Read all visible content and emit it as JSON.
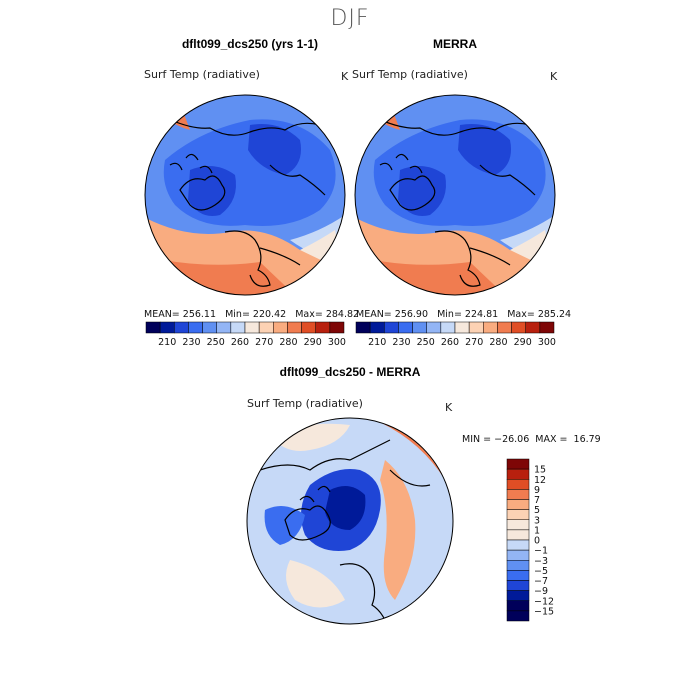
{
  "figure": {
    "title": "DJF",
    "colors": {
      "cold_1": "#00005a",
      "cold_2": "#001a99",
      "cold_3": "#1f45d6",
      "cold_4": "#3a6df0",
      "cold_5": "#6090f2",
      "cold_6": "#93b5f5",
      "cold_7": "#c6d9f7",
      "neutral": "#f6e8dc",
      "warm_1": "#fcd2b4",
      "warm_2": "#f9ac80",
      "warm_3": "#f07c50",
      "warm_4": "#e04e25",
      "warm_5": "#b8200e",
      "warm_6": "#7e0606",
      "coast": "#000000"
    }
  },
  "chart_data": [
    {
      "type": "heatmap",
      "panel": "model",
      "projection": "north-polar-stereographic",
      "title": "dflt099_dcs250 (yrs 1-1)",
      "variable": "Surf Temp (radiative)",
      "units": "K",
      "stats": {
        "mean_label": "MEAN=",
        "mean": 256.11,
        "min_label": "Min=",
        "min": 220.42,
        "max_label": "Max=",
        "max": 284.82
      },
      "colorbar": {
        "levels": [
          210,
          230,
          250,
          260,
          270,
          280,
          290,
          300
        ],
        "orientation": "horizontal"
      }
    },
    {
      "type": "heatmap",
      "panel": "observation",
      "projection": "north-polar-stereographic",
      "title": "MERRA",
      "variable": "Surf Temp (radiative)",
      "units": "K",
      "stats": {
        "mean_label": "MEAN=",
        "mean": 256.9,
        "min_label": "Min=",
        "min": 224.81,
        "max_label": "Max=",
        "max": 285.24
      },
      "colorbar": {
        "levels": [
          210,
          230,
          250,
          260,
          270,
          280,
          290,
          300
        ],
        "orientation": "horizontal"
      }
    },
    {
      "type": "heatmap",
      "panel": "difference",
      "projection": "north-polar-stereographic",
      "title": "dflt099_dcs250 - MERRA",
      "variable": "Surf Temp (radiative)",
      "units": "K",
      "stats": {
        "min_label": "MIN =",
        "min": -26.06,
        "max_label": "MAX =",
        "max": 16.79
      },
      "colorbar": {
        "levels": [
          15,
          12,
          9,
          7,
          5,
          3,
          1,
          0,
          -1,
          -3,
          -5,
          -7,
          -9,
          -12,
          -15
        ],
        "orientation": "vertical"
      }
    }
  ],
  "text": {
    "p1_stats": "MEAN= 256.11   Min= 220.42   Max= 284.82",
    "p2_stats": "MEAN= 256.90   Min= 224.81   Max= 285.24",
    "p3_stats": "MIN = −26.06  MAX =  16.79",
    "cb_h_labels": [
      "210",
      "230",
      "250",
      "260",
      "270",
      "280",
      "290",
      "300"
    ],
    "cb_v_labels": [
      "15",
      "12",
      "9",
      "7",
      "5",
      "3",
      "1",
      "0",
      "−1",
      "−3",
      "−5",
      "−7",
      "−9",
      "−12",
      "−15"
    ]
  }
}
